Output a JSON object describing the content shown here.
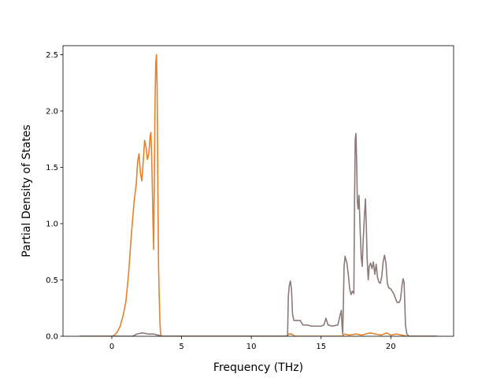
{
  "chart_data": {
    "type": "line",
    "title": "",
    "xlabel": "Frequency (THz)",
    "ylabel": "Partial Density of States",
    "xlim": [
      -3.5,
      24.5
    ],
    "ylim": [
      0,
      2.58
    ],
    "xticks": [
      0,
      5,
      10,
      15,
      20
    ],
    "yticks": [
      0.0,
      0.5,
      1.0,
      1.5,
      2.0,
      2.5
    ],
    "xtick_labels": [
      "0",
      "5",
      "10",
      "15",
      "20"
    ],
    "ytick_labels": [
      "0.0",
      "0.5",
      "1.0",
      "1.5",
      "2.0",
      "2.5"
    ],
    "grid": false,
    "legend": "none",
    "series": [
      {
        "color": "#e8812a",
        "points": [
          [
            -2.3,
            0
          ],
          [
            0,
            0
          ],
          [
            0.2,
            0.01
          ],
          [
            0.4,
            0.04
          ],
          [
            0.6,
            0.09
          ],
          [
            0.8,
            0.18
          ],
          [
            1.0,
            0.3
          ],
          [
            1.2,
            0.55
          ],
          [
            1.4,
            0.9
          ],
          [
            1.6,
            1.2
          ],
          [
            1.75,
            1.35
          ],
          [
            1.85,
            1.55
          ],
          [
            1.95,
            1.62
          ],
          [
            2.05,
            1.45
          ],
          [
            2.15,
            1.38
          ],
          [
            2.25,
            1.55
          ],
          [
            2.35,
            1.74
          ],
          [
            2.45,
            1.68
          ],
          [
            2.55,
            1.57
          ],
          [
            2.65,
            1.62
          ],
          [
            2.75,
            1.78
          ],
          [
            2.8,
            1.81
          ],
          [
            2.85,
            1.62
          ],
          [
            2.9,
            1.35
          ],
          [
            2.95,
            1.02
          ],
          [
            3.0,
            0.77
          ],
          [
            3.05,
            1.45
          ],
          [
            3.1,
            2.1
          ],
          [
            3.15,
            2.43
          ],
          [
            3.2,
            2.5
          ],
          [
            3.25,
            2.2
          ],
          [
            3.3,
            1.3
          ],
          [
            3.35,
            0.62
          ],
          [
            3.4,
            0.35
          ],
          [
            3.45,
            0.12
          ],
          [
            3.5,
            0.02
          ],
          [
            3.55,
            0
          ],
          [
            12.5,
            0
          ],
          [
            12.7,
            0.02
          ],
          [
            12.9,
            0.02
          ],
          [
            13.1,
            0.0
          ],
          [
            16.5,
            0
          ],
          [
            16.7,
            0.02
          ],
          [
            17.0,
            0.01
          ],
          [
            17.5,
            0.02
          ],
          [
            17.9,
            0.01
          ],
          [
            18.2,
            0.02
          ],
          [
            18.5,
            0.03
          ],
          [
            18.9,
            0.02
          ],
          [
            19.3,
            0.01
          ],
          [
            19.7,
            0.03
          ],
          [
            20.0,
            0.01
          ],
          [
            20.4,
            0.02
          ],
          [
            20.8,
            0.01
          ],
          [
            21.1,
            0.0
          ],
          [
            23.3,
            0
          ]
        ]
      },
      {
        "color": "#8c7a7a",
        "points": [
          [
            -2.3,
            0
          ],
          [
            1.5,
            0
          ],
          [
            1.8,
            0.02
          ],
          [
            2.2,
            0.03
          ],
          [
            2.6,
            0.02
          ],
          [
            3.0,
            0.02
          ],
          [
            3.3,
            0.01
          ],
          [
            3.6,
            0
          ],
          [
            12.6,
            0
          ],
          [
            12.65,
            0.35
          ],
          [
            12.72,
            0.45
          ],
          [
            12.8,
            0.49
          ],
          [
            12.88,
            0.42
          ],
          [
            12.95,
            0.2
          ],
          [
            13.05,
            0.14
          ],
          [
            13.5,
            0.14
          ],
          [
            13.7,
            0.1
          ],
          [
            14.0,
            0.1
          ],
          [
            14.3,
            0.09
          ],
          [
            15.0,
            0.09
          ],
          [
            15.2,
            0.1
          ],
          [
            15.35,
            0.16
          ],
          [
            15.5,
            0.1
          ],
          [
            15.8,
            0.09
          ],
          [
            16.2,
            0.1
          ],
          [
            16.35,
            0.18
          ],
          [
            16.45,
            0.23
          ],
          [
            16.5,
            0.1
          ],
          [
            16.55,
            0.02
          ],
          [
            16.6,
            0.3
          ],
          [
            16.65,
            0.62
          ],
          [
            16.72,
            0.71
          ],
          [
            16.85,
            0.65
          ],
          [
            16.95,
            0.55
          ],
          [
            17.05,
            0.42
          ],
          [
            17.15,
            0.37
          ],
          [
            17.25,
            0.4
          ],
          [
            17.35,
            0.38
          ],
          [
            17.4,
            1.2
          ],
          [
            17.45,
            1.75
          ],
          [
            17.5,
            1.8
          ],
          [
            17.55,
            1.55
          ],
          [
            17.6,
            1.2
          ],
          [
            17.65,
            1.13
          ],
          [
            17.72,
            1.25
          ],
          [
            17.8,
            0.95
          ],
          [
            17.88,
            0.7
          ],
          [
            17.95,
            0.62
          ],
          [
            18.0,
            0.8
          ],
          [
            18.1,
            1.05
          ],
          [
            18.18,
            1.22
          ],
          [
            18.25,
            0.95
          ],
          [
            18.3,
            0.7
          ],
          [
            18.38,
            0.5
          ],
          [
            18.45,
            0.62
          ],
          [
            18.55,
            0.65
          ],
          [
            18.65,
            0.6
          ],
          [
            18.75,
            0.66
          ],
          [
            18.85,
            0.55
          ],
          [
            18.95,
            0.64
          ],
          [
            19.05,
            0.52
          ],
          [
            19.15,
            0.48
          ],
          [
            19.25,
            0.47
          ],
          [
            19.35,
            0.53
          ],
          [
            19.45,
            0.66
          ],
          [
            19.55,
            0.72
          ],
          [
            19.65,
            0.65
          ],
          [
            19.75,
            0.47
          ],
          [
            19.85,
            0.43
          ],
          [
            20.0,
            0.42
          ],
          [
            20.2,
            0.38
          ],
          [
            20.45,
            0.3
          ],
          [
            20.6,
            0.3
          ],
          [
            20.7,
            0.33
          ],
          [
            20.8,
            0.45
          ],
          [
            20.88,
            0.51
          ],
          [
            20.95,
            0.48
          ],
          [
            21.0,
            0.3
          ],
          [
            21.05,
            0.1
          ],
          [
            21.15,
            0.02
          ],
          [
            21.3,
            0
          ],
          [
            23.3,
            0
          ]
        ]
      }
    ]
  }
}
